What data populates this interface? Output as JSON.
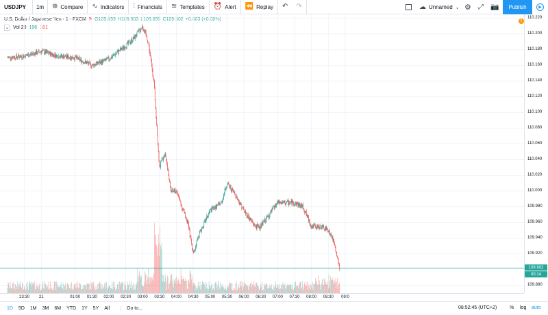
{
  "toolbar": {
    "symbol": "USDJPY",
    "interval": "1m",
    "compare": "Compare",
    "indicators": "Indicators",
    "financials": "Financials",
    "templates": "Templates",
    "alert": "Alert",
    "replay": "Replay",
    "layout_name": "Unnamed",
    "publish": "Publish"
  },
  "legend": {
    "title": "U.S. Dollar / Japanese Yen · 1 · FXCM",
    "open": "O109.899",
    "high": "H109.903",
    "low": "L109.895",
    "close": "C109.902",
    "change": "+0.003 (+0.00%)"
  },
  "volume_legend": {
    "label": "Vol 20",
    "value1": "196",
    "value2": "161"
  },
  "price_axis": {
    "ticks": [
      "110.220",
      "110.200",
      "110.180",
      "110.160",
      "110.140",
      "110.120",
      "110.100",
      "110.080",
      "110.060",
      "110.040",
      "110.020",
      "110.000",
      "109.980",
      "109.960",
      "109.940",
      "109.920",
      "109.880"
    ],
    "current_price": "109.902",
    "countdown": "00:14"
  },
  "time_axis": {
    "ticks": [
      "23:30",
      "21",
      "01:00",
      "01:30",
      "02:00",
      "02:30",
      "03:00",
      "03:30",
      "04:00",
      "04:30",
      "05:00",
      "05:30",
      "06:00",
      "06:30",
      "07:00",
      "07:30",
      "08:00",
      "08:30",
      "09:0"
    ]
  },
  "bottom": {
    "ranges": [
      "1D",
      "5D",
      "1M",
      "3M",
      "6M",
      "YTD",
      "1Y",
      "5Y",
      "All"
    ],
    "goto": "Go to...",
    "clock": "08:52:45 (UTC+2)",
    "percent": "%",
    "log": "log",
    "auto": "auto"
  },
  "colors": {
    "up": "#26a69a",
    "down": "#ef5350",
    "accent": "#2196f3"
  },
  "chart_data": {
    "type": "candlestick",
    "ylim": [
      109.87,
      110.225
    ],
    "keypoints_time": [
      "23:00",
      "23:30",
      "00:00",
      "00:30",
      "01:00",
      "01:30",
      "02:00",
      "02:30",
      "02:45",
      "03:00",
      "03:10",
      "03:20",
      "03:30",
      "03:40",
      "03:50",
      "04:00",
      "04:20",
      "04:30",
      "04:40",
      "05:00",
      "05:20",
      "05:30",
      "05:45",
      "06:00",
      "06:20",
      "06:30",
      "06:45",
      "07:00",
      "07:30",
      "07:45",
      "08:00",
      "08:15",
      "08:30",
      "08:40",
      "08:50"
    ],
    "keypoints_price": [
      110.17,
      110.172,
      110.178,
      110.172,
      110.17,
      110.16,
      110.168,
      110.185,
      110.195,
      110.21,
      110.19,
      110.14,
      110.03,
      110.05,
      110.0,
      110.0,
      109.96,
      109.92,
      109.945,
      109.975,
      109.985,
      110.01,
      109.995,
      109.975,
      109.955,
      109.955,
      109.97,
      109.985,
      109.985,
      109.98,
      109.955,
      109.955,
      109.95,
      109.935,
      109.9
    ]
  }
}
